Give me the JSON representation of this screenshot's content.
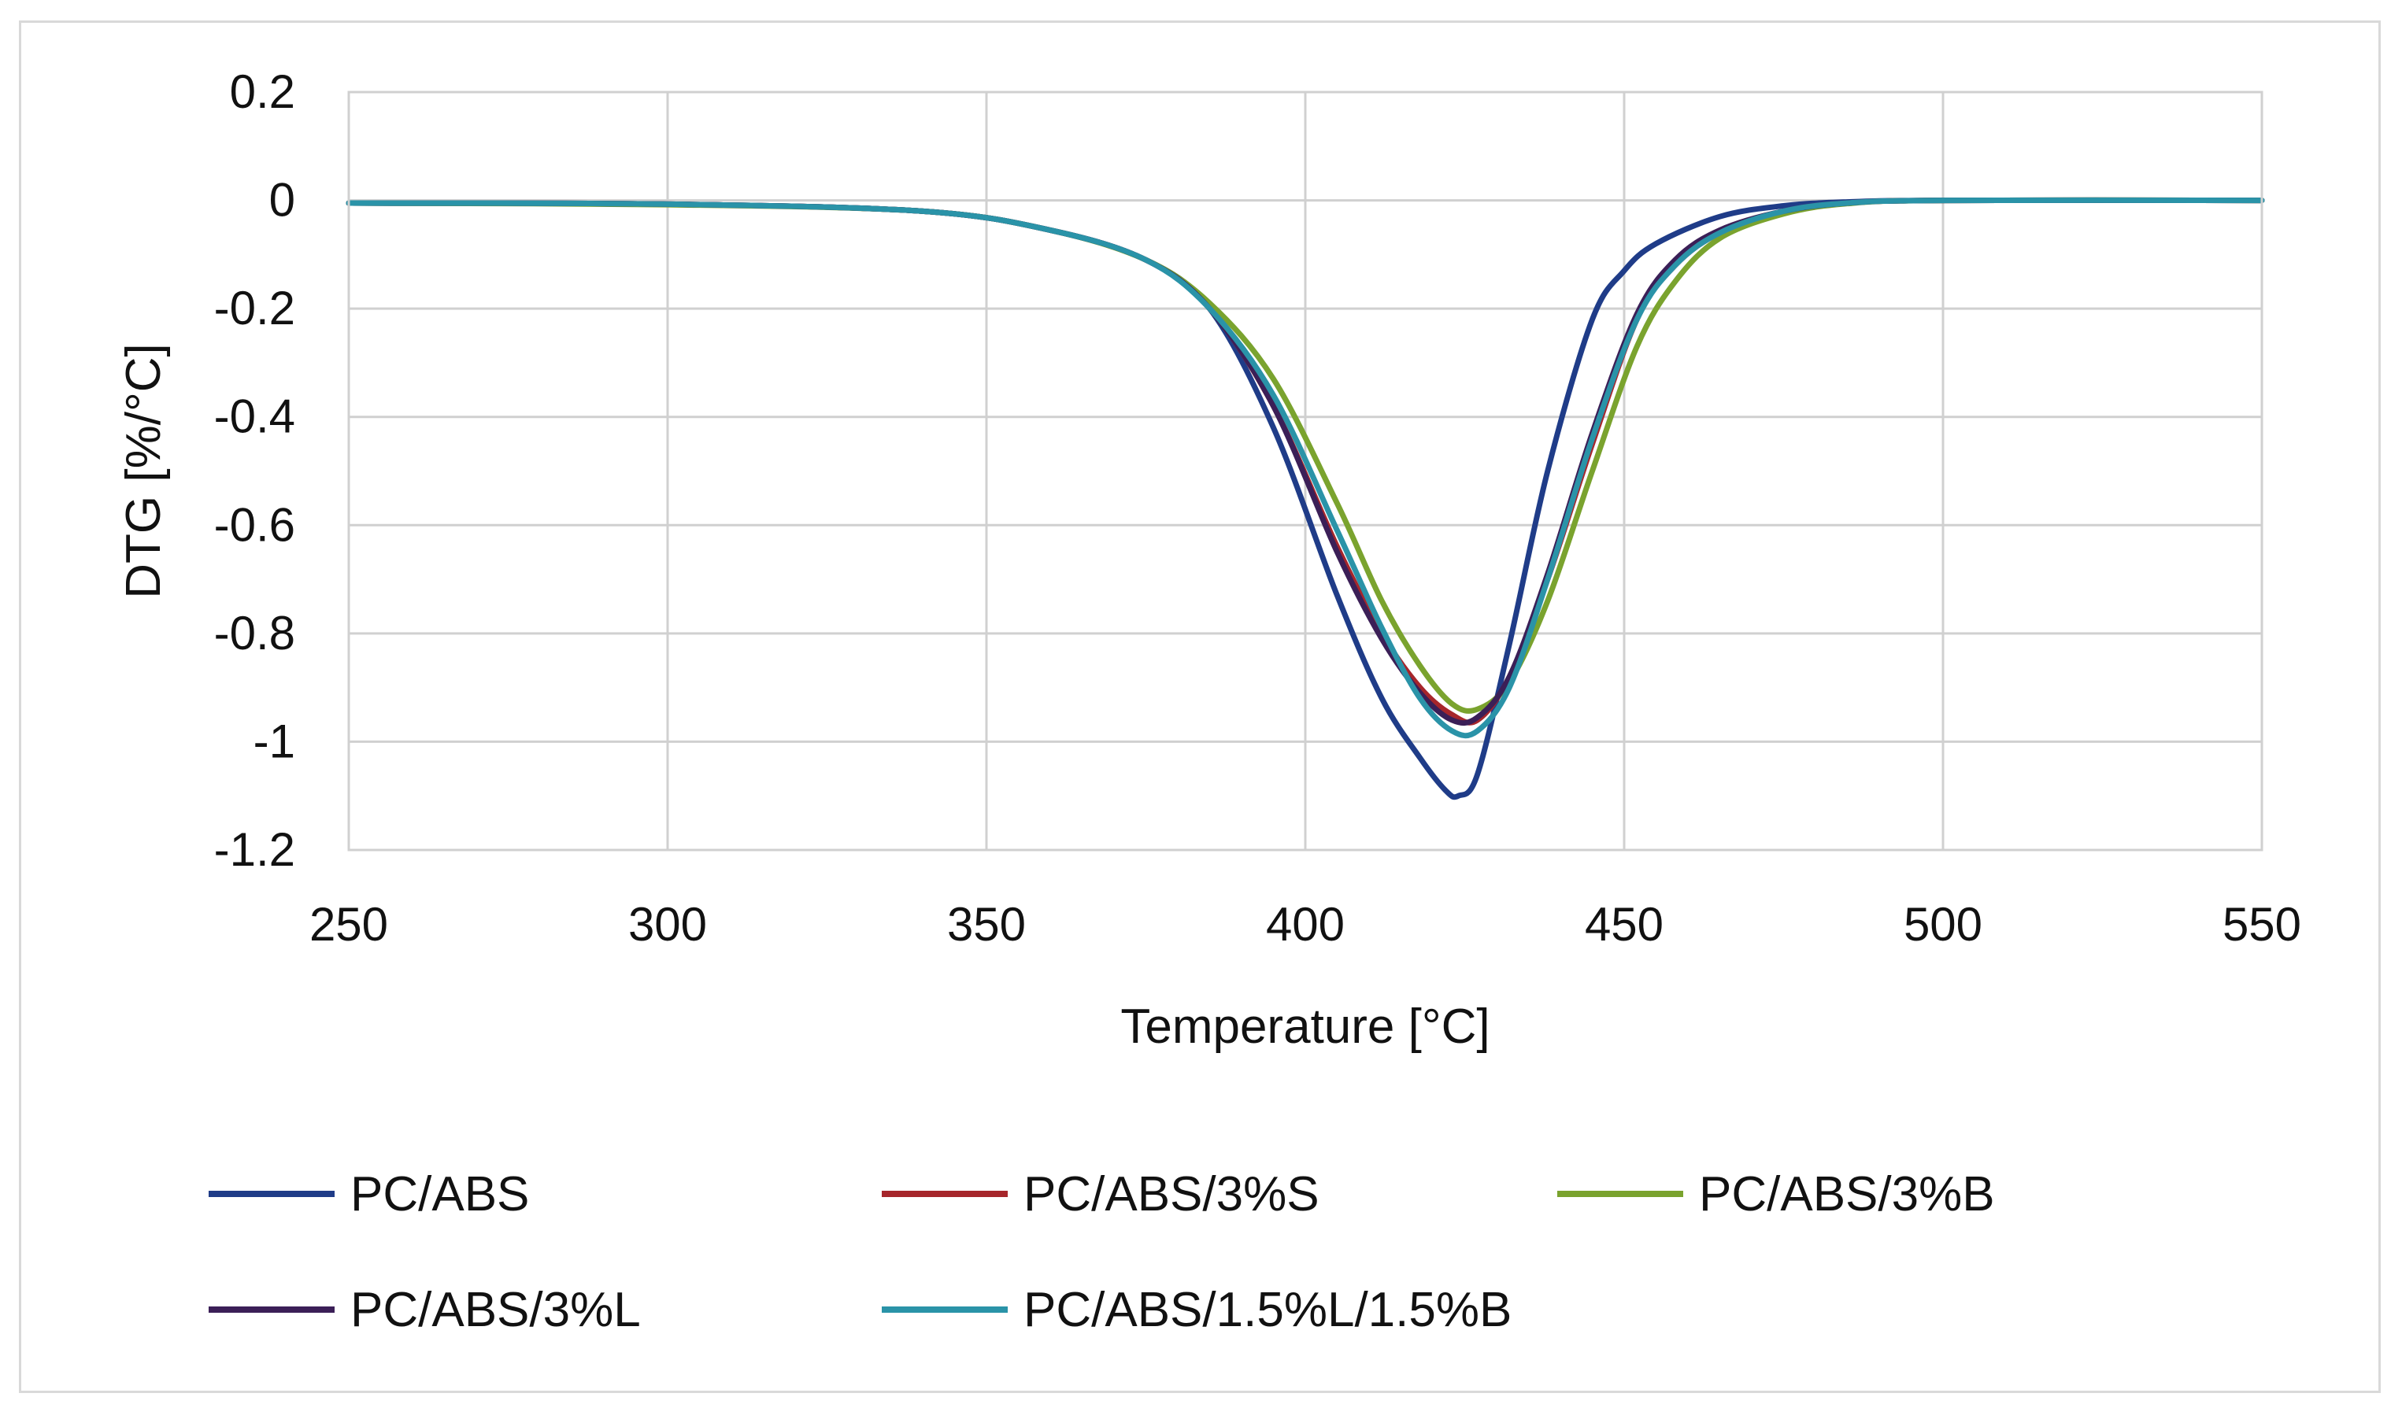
{
  "chart_data": {
    "type": "line",
    "title": "",
    "xlabel": "Temperature [°C]",
    "ylabel": "DTG [%/°C]",
    "xlim": [
      250,
      550
    ],
    "ylim": [
      -1.2,
      0.2
    ],
    "grid": true,
    "legend_position": "bottom",
    "x_ticks": [
      "250",
      "300",
      "350",
      "400",
      "450",
      "500",
      "550"
    ],
    "y_ticks": [
      "0.2",
      "0",
      "-0.2",
      "-0.4",
      "-0.6",
      "-0.8",
      "-1",
      "-1.2"
    ],
    "series": [
      {
        "name": "PC/ABS",
        "color": "#1f3c88",
        "x": [
          250,
          300,
          340,
          360,
          375,
          385,
          395,
          405,
          412,
          418,
          422,
          424,
          427,
          432,
          438,
          445,
          450,
          455,
          465,
          475,
          485,
          500,
          550
        ],
        "y": [
          -0.005,
          -0.007,
          -0.02,
          -0.055,
          -0.11,
          -0.2,
          -0.42,
          -0.73,
          -0.92,
          -1.03,
          -1.09,
          -1.1,
          -1.06,
          -0.82,
          -0.5,
          -0.22,
          -0.13,
          -0.08,
          -0.03,
          -0.01,
          -0.003,
          0,
          0
        ]
      },
      {
        "name": "PC/ABS/3%S",
        "color": "#a6262b",
        "x": [
          250,
          300,
          340,
          360,
          375,
          385,
          395,
          405,
          412,
          418,
          423,
          427,
          432,
          438,
          445,
          452,
          458,
          465,
          475,
          485,
          500,
          550
        ],
        "y": [
          -0.005,
          -0.007,
          -0.02,
          -0.055,
          -0.11,
          -0.2,
          -0.38,
          -0.64,
          -0.8,
          -0.9,
          -0.95,
          -0.96,
          -0.88,
          -0.7,
          -0.45,
          -0.22,
          -0.12,
          -0.06,
          -0.02,
          -0.005,
          0,
          0
        ]
      },
      {
        "name": "PC/ABS/3%B",
        "color": "#7aa32e",
        "x": [
          250,
          300,
          340,
          360,
          375,
          385,
          395,
          405,
          412,
          418,
          423,
          427,
          432,
          438,
          445,
          452,
          458,
          465,
          475,
          485,
          500,
          550
        ],
        "y": [
          -0.005,
          -0.008,
          -0.02,
          -0.055,
          -0.11,
          -0.19,
          -0.33,
          -0.56,
          -0.74,
          -0.86,
          -0.93,
          -0.94,
          -0.89,
          -0.74,
          -0.5,
          -0.27,
          -0.15,
          -0.07,
          -0.025,
          -0.006,
          0,
          0
        ]
      },
      {
        "name": "PC/ABS/3%L",
        "color": "#3b1f57",
        "x": [
          250,
          300,
          340,
          360,
          375,
          385,
          395,
          405,
          412,
          418,
          423,
          427,
          432,
          438,
          445,
          452,
          458,
          465,
          475,
          485,
          500,
          550
        ],
        "y": [
          -0.005,
          -0.007,
          -0.02,
          -0.055,
          -0.11,
          -0.2,
          -0.38,
          -0.65,
          -0.81,
          -0.91,
          -0.96,
          -0.955,
          -0.88,
          -0.69,
          -0.43,
          -0.21,
          -0.11,
          -0.055,
          -0.02,
          -0.005,
          0,
          0
        ]
      },
      {
        "name": "PC/ABS/1.5%L/1.5%B",
        "color": "#2a93a8",
        "x": [
          250,
          300,
          340,
          360,
          375,
          385,
          395,
          405,
          412,
          418,
          423,
          427,
          432,
          438,
          445,
          452,
          458,
          465,
          475,
          485,
          500,
          550
        ],
        "y": [
          -0.005,
          -0.007,
          -0.02,
          -0.055,
          -0.11,
          -0.2,
          -0.36,
          -0.61,
          -0.79,
          -0.92,
          -0.98,
          -0.98,
          -0.9,
          -0.7,
          -0.44,
          -0.22,
          -0.12,
          -0.06,
          -0.02,
          -0.005,
          0,
          0
        ]
      }
    ]
  }
}
